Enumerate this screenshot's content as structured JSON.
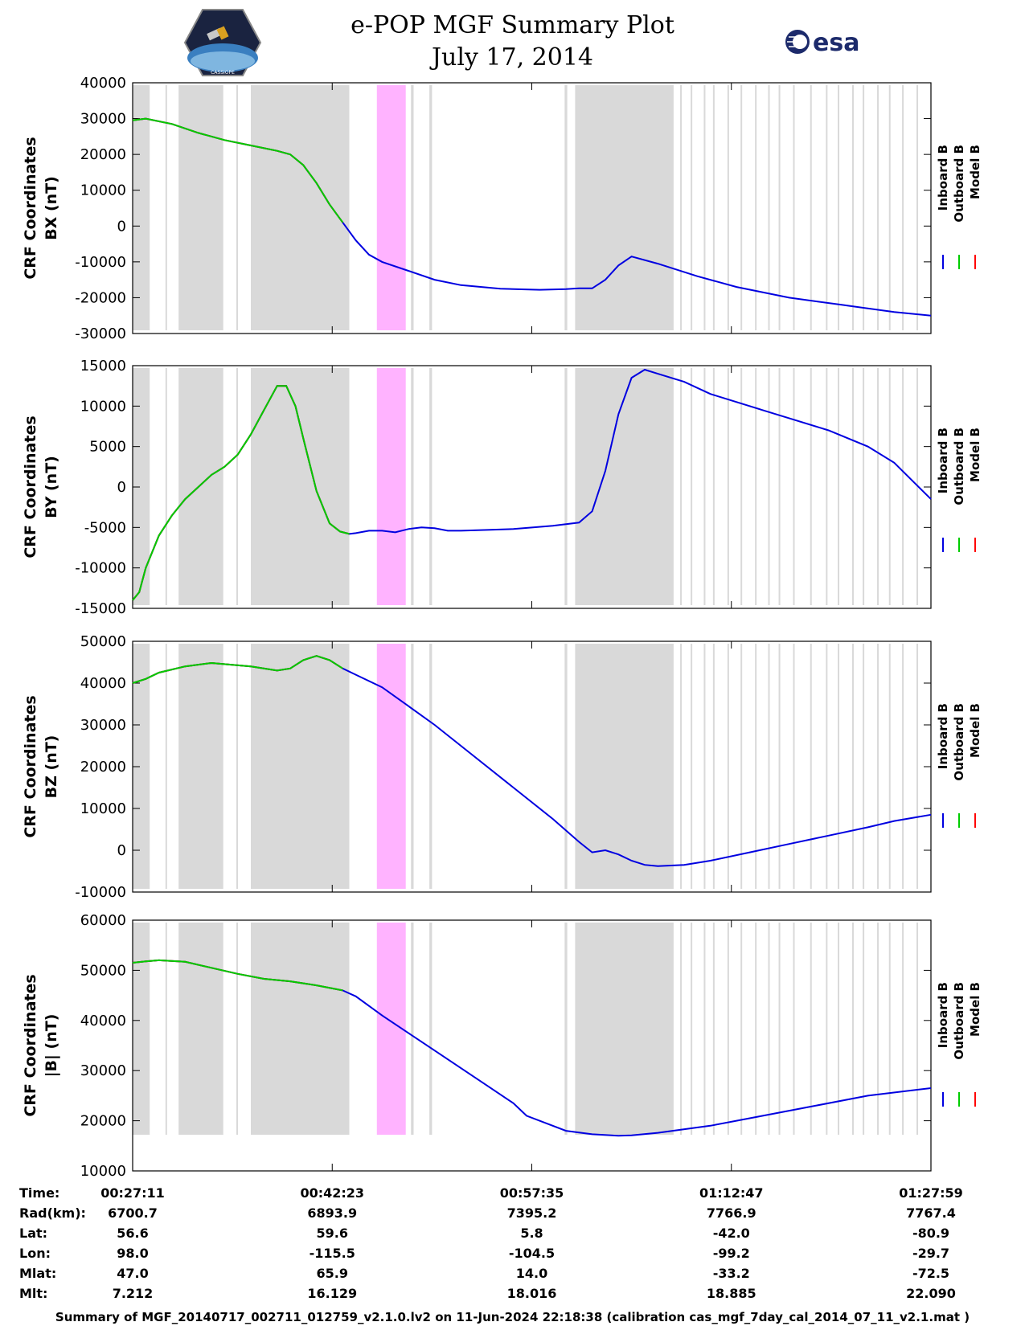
{
  "header": {
    "title_line1": "e-POP MGF Summary Plot",
    "title_line2": "July 17, 2014",
    "left_logo_text": "CASSIOPE",
    "right_logo_text": "esa"
  },
  "legend": [
    "Inboard B",
    "Outboard B",
    "Model B"
  ],
  "colors": {
    "inboard": "#0000e0",
    "outboard": "#00cc00",
    "model": "#ff0000",
    "shade": "#d9d9d9",
    "highlight": "#ffb3ff"
  },
  "chart_data": {
    "type": "line",
    "x_unit": "minutes after 00:27:11",
    "x_range": [
      0,
      60.8
    ],
    "shaded_regions_minutes": [
      [
        0,
        1.3
      ],
      [
        2.5,
        2.6
      ],
      [
        3.5,
        6.9
      ],
      [
        7.9,
        8.0
      ],
      [
        9.0,
        16.5
      ],
      [
        20.0,
        20.2
      ],
      [
        21.2,
        21.4
      ],
      [
        22.6,
        22.8
      ],
      [
        32.9,
        33.1
      ],
      [
        33.7,
        41.2
      ],
      [
        41.7,
        41.8
      ],
      [
        42.5,
        42.6
      ],
      [
        43.5,
        43.6
      ],
      [
        44.2,
        44.3
      ],
      [
        45.3,
        45.4
      ],
      [
        46.3,
        46.4
      ],
      [
        47.4,
        47.5
      ],
      [
        48.4,
        48.5
      ],
      [
        49.2,
        49.3
      ],
      [
        50.3,
        50.4
      ],
      [
        51.6,
        51.7
      ],
      [
        52.8,
        52.9
      ],
      [
        53.7,
        53.8
      ],
      [
        54.8,
        54.9
      ],
      [
        55.6,
        55.7
      ],
      [
        56.7,
        56.8
      ],
      [
        57.6,
        57.7
      ],
      [
        58.6,
        58.7
      ],
      [
        59.7,
        59.8
      ]
    ],
    "highlight_region_minutes": [
      18.6,
      20.8
    ],
    "model_visible_until_minutes": 16.5,
    "panels": [
      {
        "ylabel_line1": "CRF Coordinates",
        "ylabel_line2": "BX (nT)",
        "ylim": [
          -30000,
          40000
        ],
        "yticks": [
          -30000,
          -20000,
          -10000,
          0,
          10000,
          20000,
          30000,
          40000
        ],
        "x": [
          0,
          1,
          3,
          5,
          7,
          9,
          11,
          12,
          13,
          14,
          15,
          16,
          17,
          18,
          19,
          21,
          23,
          25,
          28,
          31,
          33,
          34,
          35,
          36,
          37,
          38,
          40,
          43,
          46,
          50,
          54,
          58,
          60.8
        ],
        "y": [
          29500,
          30000,
          28500,
          26000,
          24000,
          22500,
          21000,
          20000,
          17000,
          12000,
          6000,
          1000,
          -4000,
          -8000,
          -10000,
          -12500,
          -15000,
          -16500,
          -17500,
          -17800,
          -17600,
          -17400,
          -17400,
          -15000,
          -11000,
          -8500,
          -10500,
          -14000,
          -17000,
          -20000,
          -22000,
          -24000,
          -25000
        ]
      },
      {
        "ylabel_line1": "CRF Coordinates",
        "ylabel_line2": "BY (nT)",
        "ylim": [
          -15000,
          15000
        ],
        "yticks": [
          -15000,
          -10000,
          -5000,
          0,
          5000,
          10000,
          15000
        ],
        "x": [
          0,
          0.5,
          1,
          2,
          3,
          4,
          5,
          6,
          7,
          8,
          9,
          10,
          11,
          11.7,
          12.4,
          13,
          14,
          15,
          15.8,
          16.5,
          17,
          18,
          19,
          20,
          21,
          22,
          23,
          24,
          25,
          27,
          29,
          32,
          34,
          35,
          36,
          37,
          38,
          39,
          40,
          42,
          44,
          46,
          48,
          50,
          53,
          56,
          58,
          60.8
        ],
        "y": [
          -14000,
          -13000,
          -10000,
          -6000,
          -3500,
          -1500,
          0,
          1500,
          2500,
          4000,
          6500,
          9500,
          12500,
          12500,
          10000,
          6000,
          -500,
          -4500,
          -5500,
          -5800,
          -5700,
          -5400,
          -5400,
          -5600,
          -5200,
          -5000,
          -5100,
          -5400,
          -5400,
          -5300,
          -5200,
          -4800,
          -4400,
          -3000,
          2000,
          9000,
          13500,
          14500,
          14000,
          13000,
          11500,
          10500,
          9500,
          8500,
          7000,
          5000,
          3000,
          -1500
        ]
      },
      {
        "ylabel_line1": "CRF Coordinates",
        "ylabel_line2": "BZ (nT)",
        "ylim": [
          -10000,
          50000
        ],
        "yticks": [
          -10000,
          0,
          10000,
          20000,
          30000,
          40000,
          50000
        ],
        "x": [
          0,
          1,
          2,
          4,
          6,
          9,
          11,
          12,
          13,
          14,
          15,
          16,
          17,
          19,
          21,
          23,
          26,
          29,
          32,
          34,
          35,
          36,
          37,
          38,
          39,
          40,
          42,
          44,
          47,
          50,
          53,
          56,
          58,
          60.8
        ],
        "y": [
          40000,
          41000,
          42500,
          44000,
          44800,
          44000,
          43000,
          43500,
          45500,
          46500,
          45500,
          43500,
          42000,
          39000,
          34500,
          30000,
          22500,
          15000,
          7500,
          2000,
          -500,
          0,
          -1000,
          -2500,
          -3500,
          -3800,
          -3500,
          -2500,
          -500,
          1500,
          3500,
          5500,
          7000,
          8500
        ]
      },
      {
        "ylabel_line1": "CRF Coordinates",
        "ylabel_line2": "|B| (nT)",
        "ylim": [
          10000,
          60000
        ],
        "yticks": [
          10000,
          20000,
          30000,
          40000,
          50000,
          60000
        ],
        "x": [
          0,
          1,
          2,
          4,
          6,
          8,
          10,
          12,
          14,
          16,
          17,
          19,
          21,
          23,
          25,
          27,
          29,
          30,
          33,
          35,
          37,
          38,
          40,
          44,
          48,
          52,
          56,
          60.8
        ],
        "y": [
          51500,
          51800,
          52000,
          51700,
          50500,
          49300,
          48300,
          47800,
          47000,
          46000,
          44800,
          41000,
          37500,
          34000,
          30500,
          27000,
          23500,
          21000,
          18000,
          17300,
          17000,
          17100,
          17600,
          19000,
          21000,
          23000,
          25000,
          26500
        ]
      }
    ],
    "xticks_minutes": [
      0,
      15.2,
      30.4,
      45.6,
      60.8
    ]
  },
  "time_axis": {
    "labels": [
      "Time:",
      "Rad(km):",
      "Lat:",
      "Lon:",
      "Mlat:",
      "Mlt:"
    ],
    "columns": [
      [
        "00:27:11",
        "6700.7",
        "56.6",
        "98.0",
        "47.0",
        "7.212"
      ],
      [
        "00:42:23",
        "6893.9",
        "59.6",
        "-115.5",
        "65.9",
        "16.129"
      ],
      [
        "00:57:35",
        "7395.2",
        "5.8",
        "-104.5",
        "14.0",
        "18.016"
      ],
      [
        "01:12:47",
        "7766.9",
        "-42.0",
        "-99.2",
        "-33.2",
        "18.885"
      ],
      [
        "01:27:59",
        "7767.4",
        "-80.9",
        "-29.7",
        "-72.5",
        "22.090"
      ]
    ]
  },
  "footer": "Summary of MGF_20140717_002711_012759_v2.1.0.lv2 on 11-Jun-2024 22:18:38 (calibration cas_mgf_7day_cal_2014_07_11_v2.1.mat )"
}
